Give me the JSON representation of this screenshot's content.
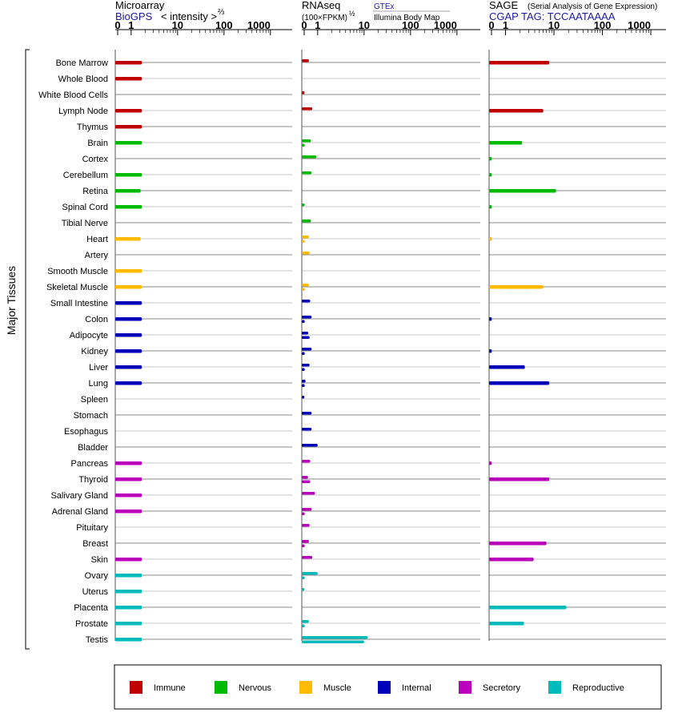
{
  "chart_data": {
    "type": "bar",
    "colors": {
      "Immune": "#c00000",
      "Nervous": "#00bb00",
      "Muscle": "#ffbb00",
      "Internal": "#0000bb",
      "Secretory": "#bb00bb",
      "Reproductive": "#00bbbb"
    },
    "ylabel": "Major Tissues",
    "tissues": [
      {
        "name": "Bone Marrow",
        "system": "Immune"
      },
      {
        "name": "Whole Blood",
        "system": "Immune"
      },
      {
        "name": "White Blood Cells",
        "system": "Immune"
      },
      {
        "name": "Lymph Node",
        "system": "Immune"
      },
      {
        "name": "Thymus",
        "system": "Immune"
      },
      {
        "name": "Brain",
        "system": "Nervous"
      },
      {
        "name": "Cortex",
        "system": "Nervous"
      },
      {
        "name": "Cerebellum",
        "system": "Nervous"
      },
      {
        "name": "Retina",
        "system": "Nervous"
      },
      {
        "name": "Spinal Cord",
        "system": "Nervous"
      },
      {
        "name": "Tibial Nerve",
        "system": "Nervous"
      },
      {
        "name": "Heart",
        "system": "Muscle"
      },
      {
        "name": "Artery",
        "system": "Muscle"
      },
      {
        "name": "Smooth Muscle",
        "system": "Muscle"
      },
      {
        "name": "Skeletal Muscle",
        "system": "Muscle"
      },
      {
        "name": "Small Intestine",
        "system": "Internal"
      },
      {
        "name": "Colon",
        "system": "Internal"
      },
      {
        "name": "Adipocyte",
        "system": "Internal"
      },
      {
        "name": "Kidney",
        "system": "Internal"
      },
      {
        "name": "Liver",
        "system": "Internal"
      },
      {
        "name": "Lung",
        "system": "Internal"
      },
      {
        "name": "Spleen",
        "system": "Internal"
      },
      {
        "name": "Stomach",
        "system": "Internal"
      },
      {
        "name": "Esophagus",
        "system": "Internal"
      },
      {
        "name": "Bladder",
        "system": "Internal"
      },
      {
        "name": "Pancreas",
        "system": "Secretory"
      },
      {
        "name": "Thyroid",
        "system": "Secretory"
      },
      {
        "name": "Salivary Gland",
        "system": "Secretory"
      },
      {
        "name": "Adrenal Gland",
        "system": "Secretory"
      },
      {
        "name": "Pituitary",
        "system": "Secretory"
      },
      {
        "name": "Breast",
        "system": "Secretory"
      },
      {
        "name": "Skin",
        "system": "Secretory"
      },
      {
        "name": "Ovary",
        "system": "Reproductive"
      },
      {
        "name": "Uterus",
        "system": "Reproductive"
      },
      {
        "name": "Placenta",
        "system": "Reproductive"
      },
      {
        "name": "Prostate",
        "system": "Reproductive"
      },
      {
        "name": "Testis",
        "system": "Reproductive"
      }
    ],
    "x_ticks": [
      0,
      1,
      10,
      100,
      1000
    ],
    "panels": [
      {
        "title": "Microarray",
        "subtitle": "BioGPS",
        "unit_label": "< intensity >",
        "unit_sup": "⅔",
        "series": [
          {
            "values": [
              1.7,
              1.7,
              null,
              1.7,
              1.7,
              1.7,
              null,
              1.7,
              1.6,
              1.7,
              null,
              1.6,
              null,
              1.7,
              1.7,
              1.7,
              1.7,
              1.7,
              1.7,
              1.7,
              1.7,
              null,
              null,
              null,
              null,
              1.7,
              1.7,
              1.7,
              1.7,
              null,
              null,
              1.7,
              1.7,
              1.7,
              1.7,
              1.7,
              1.7
            ]
          }
        ]
      },
      {
        "title": "RNAseq",
        "unit_label": "(100×FPKM)",
        "unit_sup": "½",
        "legend_top": "GTEx",
        "legend_bottom": "Illumina Body Map",
        "series": [
          {
            "name": "GTEx",
            "values": [
              0.35,
              null,
              0.03,
              0.6,
              null,
              0.5,
              0.9,
              0.55,
              null,
              0.03,
              0.5,
              0.35,
              0.4,
              null,
              0.35,
              0.45,
              0.55,
              0.3,
              0.55,
              0.4,
              0.1,
              0.02,
              0.55,
              0.55,
              1.0,
              0.45,
              0.28,
              0.8,
              0.55,
              0.4,
              0.35,
              0.6,
              1.0,
              0.02,
              null,
              0.35,
              12
            ]
          },
          {
            "name": "Illumina Body Map",
            "values": [
              null,
              null,
              null,
              null,
              null,
              0.04,
              null,
              null,
              null,
              null,
              null,
              0.04,
              null,
              null,
              0.04,
              null,
              0.04,
              0.4,
              0.04,
              0.04,
              0.04,
              null,
              null,
              null,
              null,
              null,
              0.45,
              null,
              0.04,
              null,
              0.04,
              null,
              0.04,
              null,
              null,
              0.04,
              10
            ]
          }
        ]
      },
      {
        "title": "SAGE",
        "title_note": "(Serial Analysis of Gene Expression)",
        "subtitle": "CGAP TAG: TCCAATAAAA",
        "series": [
          {
            "values": [
              8,
              null,
              null,
              6,
              null,
              2.2,
              0.02,
              0.02,
              11,
              0.02,
              null,
              0.02,
              null,
              null,
              6,
              null,
              0.02,
              null,
              0.02,
              2.5,
              8,
              null,
              null,
              null,
              null,
              0.02,
              8,
              null,
              null,
              null,
              7,
              3.8,
              null,
              null,
              18,
              2.4,
              null
            ]
          }
        ]
      }
    ],
    "legend": [
      "Immune",
      "Nervous",
      "Muscle",
      "Internal",
      "Secretory",
      "Reproductive"
    ]
  }
}
